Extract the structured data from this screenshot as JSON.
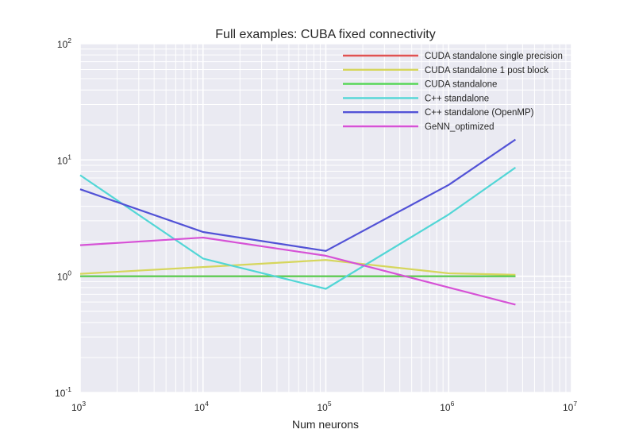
{
  "chart_data": {
    "type": "line",
    "title": "Full examples: CUBA fixed connectivity",
    "xlabel": "Num neurons",
    "ylabel": "",
    "xscale": "log",
    "yscale": "log",
    "xlim": [
      1000,
      10000000
    ],
    "ylim": [
      0.1,
      100
    ],
    "grid": true,
    "legend_position": "top-right",
    "x_ticks": [
      {
        "base": "10",
        "exp": "3",
        "value": 1000
      },
      {
        "base": "10",
        "exp": "4",
        "value": 10000
      },
      {
        "base": "10",
        "exp": "5",
        "value": 100000
      },
      {
        "base": "10",
        "exp": "6",
        "value": 1000000
      },
      {
        "base": "10",
        "exp": "7",
        "value": 10000000
      }
    ],
    "y_ticks": [
      {
        "base": "10",
        "exp": "-1",
        "value": 0.1
      },
      {
        "base": "10",
        "exp": "0",
        "value": 1
      },
      {
        "base": "10",
        "exp": "1",
        "value": 10
      },
      {
        "base": "10",
        "exp": "2",
        "value": 100
      }
    ],
    "x": [
      1000,
      10000,
      100000,
      1000000,
      3500000
    ],
    "series": [
      {
        "name": "CUDA standalone single precision",
        "color": "#e05252",
        "values": [
          1.0,
          1.0,
          1.0,
          1.0,
          1.0
        ]
      },
      {
        "name": "CUDA standalone 1 post block",
        "color": "#d6d65c",
        "values": [
          1.05,
          1.2,
          1.38,
          1.06,
          1.03
        ]
      },
      {
        "name": "CUDA standalone",
        "color": "#52d652",
        "values": [
          1.0,
          1.0,
          1.0,
          1.0,
          1.0
        ]
      },
      {
        "name": "C++ standalone",
        "color": "#52d6d6",
        "values": [
          7.4,
          1.42,
          0.78,
          3.4,
          8.6
        ]
      },
      {
        "name": "C++ standalone (OpenMP)",
        "color": "#5252d6",
        "values": [
          5.6,
          2.4,
          1.65,
          6.1,
          15.0
        ]
      },
      {
        "name": "GeNN_optimized",
        "color": "#d652d6",
        "values": [
          1.85,
          2.15,
          1.5,
          0.8,
          0.57
        ]
      }
    ]
  }
}
